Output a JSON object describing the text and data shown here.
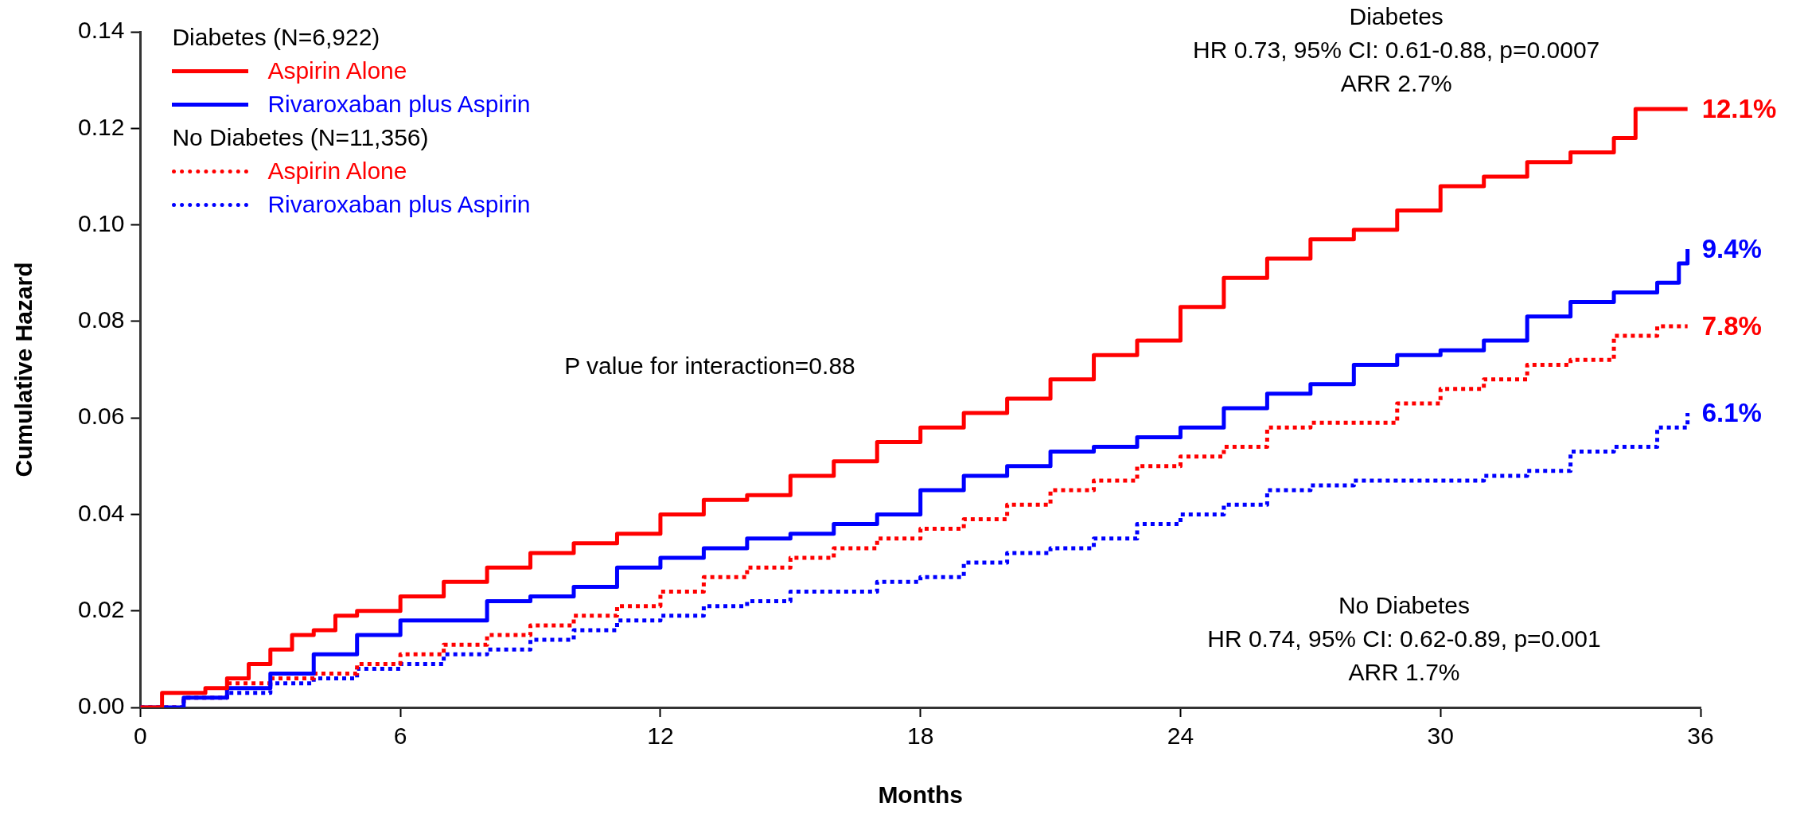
{
  "chart_data": {
    "type": "step",
    "xlabel": "Months",
    "ylabel": "Cumulative Hazard",
    "xlim": [
      0,
      36
    ],
    "xticks": [
      0,
      6,
      12,
      18,
      24,
      30,
      36
    ],
    "ylim": [
      0,
      0.14
    ],
    "yticks": [
      {
        "value": 0,
        "label": "0.00"
      },
      {
        "value": 0.02,
        "label": "0.02"
      },
      {
        "value": 0.04,
        "label": "0.04"
      },
      {
        "value": 0.06,
        "label": "0.06"
      },
      {
        "value": 0.08,
        "label": "0.08"
      },
      {
        "value": 0.1,
        "label": "0.10"
      },
      {
        "value": 0.12,
        "label": "0.12"
      },
      {
        "value": 0.14,
        "label": "0.14"
      }
    ],
    "grid": false,
    "legend": "top left",
    "marker": "none",
    "series": [
      {
        "name": "Aspirin Alone",
        "color": "#ff0000",
        "line_style": "solid",
        "x": [
          0,
          0.5,
          1,
          1.5,
          2,
          2.5,
          3,
          3.5,
          4,
          4.5,
          5,
          6,
          7,
          8,
          9,
          10,
          11,
          12,
          13,
          14,
          15,
          16,
          17,
          18,
          19,
          20,
          21,
          22,
          23,
          24,
          25,
          26,
          27,
          28,
          29,
          30,
          31,
          32,
          33,
          34,
          34.5,
          35.7
        ],
        "values": [
          0,
          0.003,
          0.003,
          0.004,
          0.006,
          0.009,
          0.012,
          0.015,
          0.016,
          0.019,
          0.02,
          0.023,
          0.026,
          0.029,
          0.032,
          0.034,
          0.036,
          0.04,
          0.043,
          0.044,
          0.048,
          0.051,
          0.055,
          0.058,
          0.061,
          0.064,
          0.068,
          0.073,
          0.076,
          0.083,
          0.089,
          0.093,
          0.097,
          0.099,
          0.103,
          0.108,
          0.11,
          0.113,
          0.115,
          0.118,
          0.124,
          0.124
        ]
      },
      {
        "name": "Rivaroxaban plus Aspirin",
        "color": "#0000ff",
        "line_style": "solid",
        "x": [
          0,
          1,
          2,
          3,
          4,
          5,
          6,
          7,
          8,
          9,
          10,
          11,
          12,
          13,
          14,
          15,
          16,
          17,
          18,
          19,
          20,
          21,
          22,
          23,
          24,
          25,
          26,
          27,
          28,
          29,
          30,
          31,
          32,
          33,
          34,
          35,
          35.5,
          35.7
        ],
        "values": [
          0,
          0.002,
          0.004,
          0.007,
          0.011,
          0.015,
          0.018,
          0.018,
          0.022,
          0.023,
          0.025,
          0.029,
          0.031,
          0.033,
          0.035,
          0.036,
          0.038,
          0.04,
          0.045,
          0.048,
          0.05,
          0.053,
          0.054,
          0.056,
          0.058,
          0.062,
          0.065,
          0.067,
          0.071,
          0.073,
          0.074,
          0.076,
          0.081,
          0.084,
          0.086,
          0.088,
          0.092,
          0.095
        ]
      },
      {
        "name": "Aspirin Alone",
        "color": "#ff0000",
        "line_style": "dotted",
        "x": [
          0,
          1,
          2,
          3,
          4,
          5,
          6,
          7,
          8,
          9,
          10,
          11,
          12,
          13,
          14,
          15,
          16,
          17,
          18,
          19,
          20,
          21,
          22,
          23,
          24,
          25,
          26,
          27,
          28,
          29,
          30,
          31,
          32,
          33,
          34,
          35,
          35.7
        ],
        "values": [
          0,
          0.002,
          0.005,
          0.006,
          0.007,
          0.009,
          0.011,
          0.013,
          0.015,
          0.017,
          0.019,
          0.021,
          0.024,
          0.027,
          0.029,
          0.031,
          0.033,
          0.035,
          0.037,
          0.039,
          0.042,
          0.045,
          0.047,
          0.05,
          0.052,
          0.054,
          0.058,
          0.059,
          0.059,
          0.063,
          0.066,
          0.068,
          0.071,
          0.072,
          0.077,
          0.079,
          0.079
        ]
      },
      {
        "name": "Rivaroxaban plus Aspirin",
        "color": "#0000ff",
        "line_style": "dotted",
        "x": [
          0,
          1,
          2,
          3,
          4,
          5,
          6,
          7,
          8,
          9,
          10,
          11,
          12,
          13,
          14,
          15,
          16,
          17,
          18,
          19,
          20,
          21,
          22,
          23,
          24,
          25,
          26,
          27,
          28,
          29,
          30,
          31,
          32,
          33,
          34,
          35,
          35.7
        ],
        "values": [
          0,
          0.002,
          0.003,
          0.005,
          0.006,
          0.008,
          0.009,
          0.011,
          0.012,
          0.014,
          0.016,
          0.018,
          0.019,
          0.021,
          0.022,
          0.024,
          0.024,
          0.026,
          0.027,
          0.03,
          0.032,
          0.033,
          0.035,
          0.038,
          0.04,
          0.042,
          0.045,
          0.046,
          0.047,
          0.047,
          0.047,
          0.048,
          0.049,
          0.053,
          0.054,
          0.058,
          0.061
        ]
      }
    ],
    "annotations": [
      "Diabetes (N=6,922)",
      "No Diabetes (N=11,356)",
      "Diabetes\nHR 0.73, 95% CI: 0.61-0.88, p=0.0007\nARR 2.7%",
      "P value for interaction=0.88",
      "No Diabetes\nHR 0.74, 95% CI: 0.62-0.89, p=0.001\nARR 1.7%",
      "12.1%",
      "9.4%",
      "7.8%",
      "6.1%"
    ]
  }
}
